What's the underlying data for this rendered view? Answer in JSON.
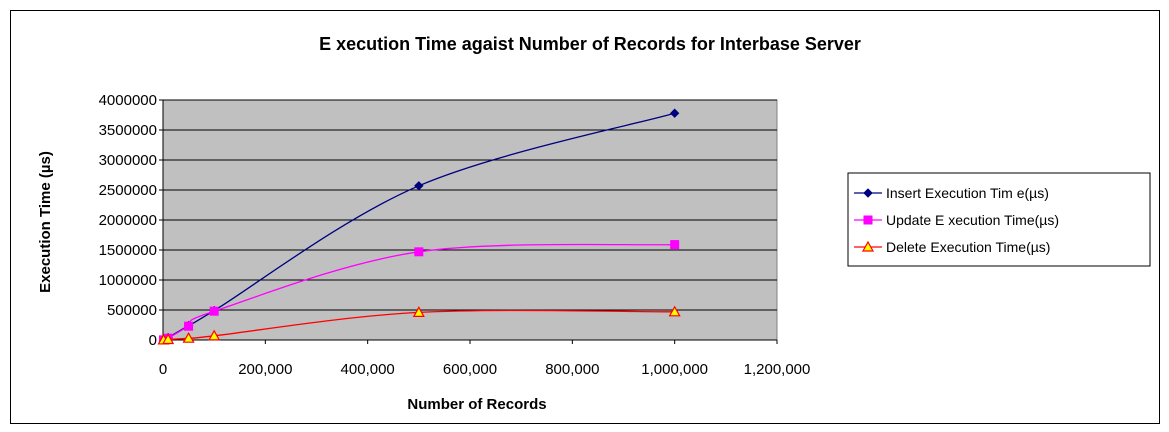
{
  "chart_data": {
    "type": "line",
    "title": "E xecution Time agaist Number of Records for Interbase Server",
    "xlabel": "Number of Records",
    "ylabel": "Execution Time (µs)",
    "xlim": [
      0,
      1200000
    ],
    "ylim": [
      0,
      4000000
    ],
    "x_ticks": [
      0,
      200000,
      400000,
      600000,
      800000,
      1000000,
      1200000
    ],
    "x_tick_labels": [
      "0",
      "200,000",
      "400,000",
      "600,000",
      "800,000",
      "1,000,000",
      "1,200,000"
    ],
    "y_ticks": [
      0,
      500000,
      1000000,
      1500000,
      2000000,
      2500000,
      3000000,
      3500000,
      4000000
    ],
    "y_tick_labels": [
      "0",
      "500000",
      "1000000",
      "1500000",
      "2000000",
      "2500000",
      "3000000",
      "3500000",
      "4000000"
    ],
    "grid": "horizontal",
    "legend_position": "right",
    "plot_background": "#c0c0c0",
    "x": [
      1000,
      10000,
      50000,
      100000,
      500000,
      1000000
    ],
    "series": [
      {
        "name": "Insert Execution Tim e(µs)",
        "color": "#000080",
        "marker": "diamond",
        "values": [
          5000,
          40000,
          240000,
          490000,
          2570000,
          3780000
        ]
      },
      {
        "name": "Update E xecution Time(µs)",
        "color": "#ff00ff",
        "marker": "square",
        "values": [
          3000,
          30000,
          230000,
          480000,
          1470000,
          1590000
        ]
      },
      {
        "name": "Delete Execution Time(µs)",
        "color": "#ff0000",
        "marker": "triangle",
        "values": [
          1000,
          8000,
          30000,
          70000,
          460000,
          470000
        ]
      }
    ]
  }
}
